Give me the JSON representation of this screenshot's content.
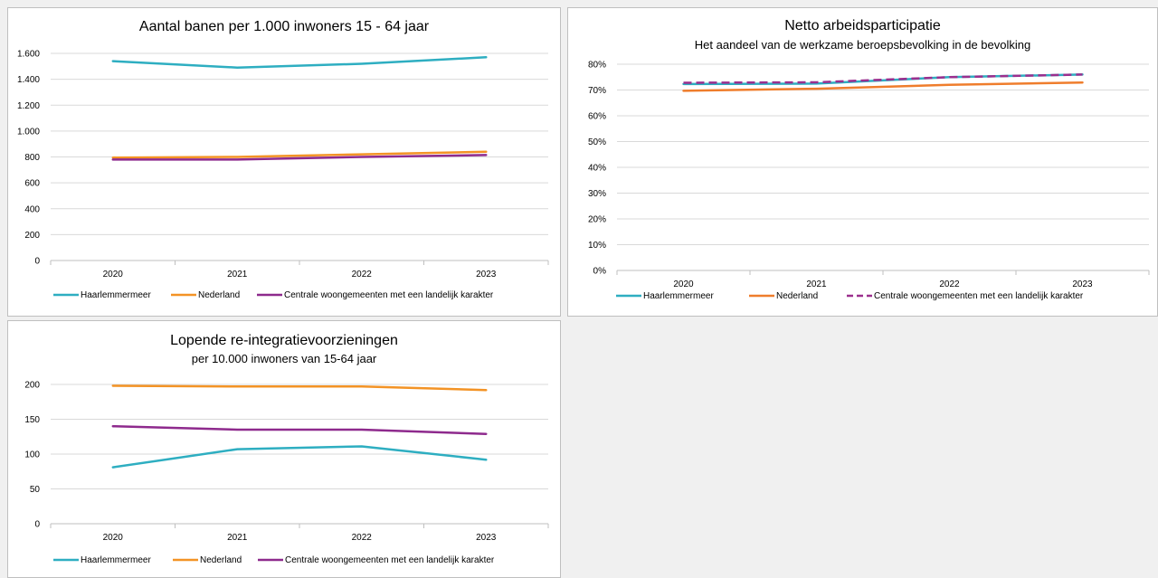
{
  "chart_data": [
    {
      "type": "line",
      "title": "Aantal banen per 1.000 inwoners 15 - 64 jaar",
      "subtitle": "",
      "categories": [
        "2020",
        "2021",
        "2022",
        "2023"
      ],
      "ylim": [
        0,
        1600
      ],
      "yticks": [
        0,
        200,
        400,
        600,
        800,
        1000,
        1200,
        1400,
        1600
      ],
      "ytick_labels": [
        "0",
        "200",
        "400",
        "600",
        "800",
        "1.000",
        "1.200",
        "1.400",
        "1.600"
      ],
      "grid": true,
      "legend": "bottom",
      "series": [
        {
          "name": "Haarlemmermeer",
          "values": [
            1540,
            1490,
            1520,
            1570
          ],
          "color": "#2eaec1",
          "dash": false
        },
        {
          "name": "Nederland",
          "values": [
            795,
            800,
            820,
            840
          ],
          "color": "#f39325",
          "dash": false
        },
        {
          "name": "Centrale woongemeenten met een landelijk karakter",
          "values": [
            780,
            780,
            800,
            815
          ],
          "color": "#8e2a8d",
          "dash": false
        }
      ]
    },
    {
      "type": "line",
      "title": "Netto arbeidsparticipatie",
      "subtitle": "Het aandeel van de werkzame beroepsbevolking in de bevolking",
      "categories": [
        "2020",
        "2021",
        "2022",
        "2023"
      ],
      "ylim": [
        0,
        80
      ],
      "yticks": [
        0,
        10,
        20,
        30,
        40,
        50,
        60,
        70,
        80
      ],
      "ytick_labels": [
        "0%",
        "10%",
        "20%",
        "30%",
        "40%",
        "50%",
        "60%",
        "70%",
        "80%"
      ],
      "grid": true,
      "legend": "bottom",
      "series": [
        {
          "name": "Haarlemmermeer",
          "values": [
            72.3,
            72.5,
            75.0,
            76.0
          ],
          "color": "#2eaec1",
          "dash": false
        },
        {
          "name": "Nederland",
          "values": [
            69.7,
            70.5,
            72.0,
            72.9
          ],
          "color": "#ef7d2c",
          "dash": false
        },
        {
          "name": "Centrale woongemeenten met een landelijk karakter",
          "values": [
            72.8,
            73.0,
            75.0,
            76.0
          ],
          "color": "#9b2f8e",
          "dash": true
        }
      ]
    },
    {
      "type": "line",
      "title": "Lopende re-integratievoorzieningen",
      "subtitle": "per 10.000 inwoners van 15-64 jaar",
      "categories": [
        "2020",
        "2021",
        "2022",
        "2023"
      ],
      "ylim": [
        0,
        200
      ],
      "yticks": [
        0,
        50,
        100,
        150,
        200
      ],
      "ytick_labels": [
        "0",
        "50",
        "100",
        "150",
        "200"
      ],
      "grid": true,
      "legend": "bottom",
      "series": [
        {
          "name": "Haarlemmermeer",
          "values": [
            81,
            107,
            111,
            92
          ],
          "color": "#2eaec1",
          "dash": false
        },
        {
          "name": "Nederland",
          "values": [
            198,
            197,
            197,
            192
          ],
          "color": "#f39325",
          "dash": false
        },
        {
          "name": "Centrale woongemeenten met een landelijk karakter",
          "values": [
            140,
            135,
            135,
            129
          ],
          "color": "#8e2a8d",
          "dash": false
        }
      ]
    }
  ]
}
